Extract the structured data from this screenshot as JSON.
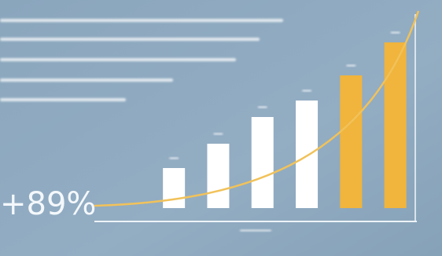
{
  "chart_data": {
    "type": "bar",
    "annotation": "+89%",
    "categories": [
      null,
      null,
      null,
      null,
      null,
      null
    ],
    "values": [
      51,
      82,
      116,
      137,
      169,
      211
    ],
    "colors": [
      "#ffffff",
      "#ffffff",
      "#ffffff",
      "#ffffff",
      "#f1b43c",
      "#f1b43c"
    ],
    "ylim": [
      0,
      230
    ]
  }
}
